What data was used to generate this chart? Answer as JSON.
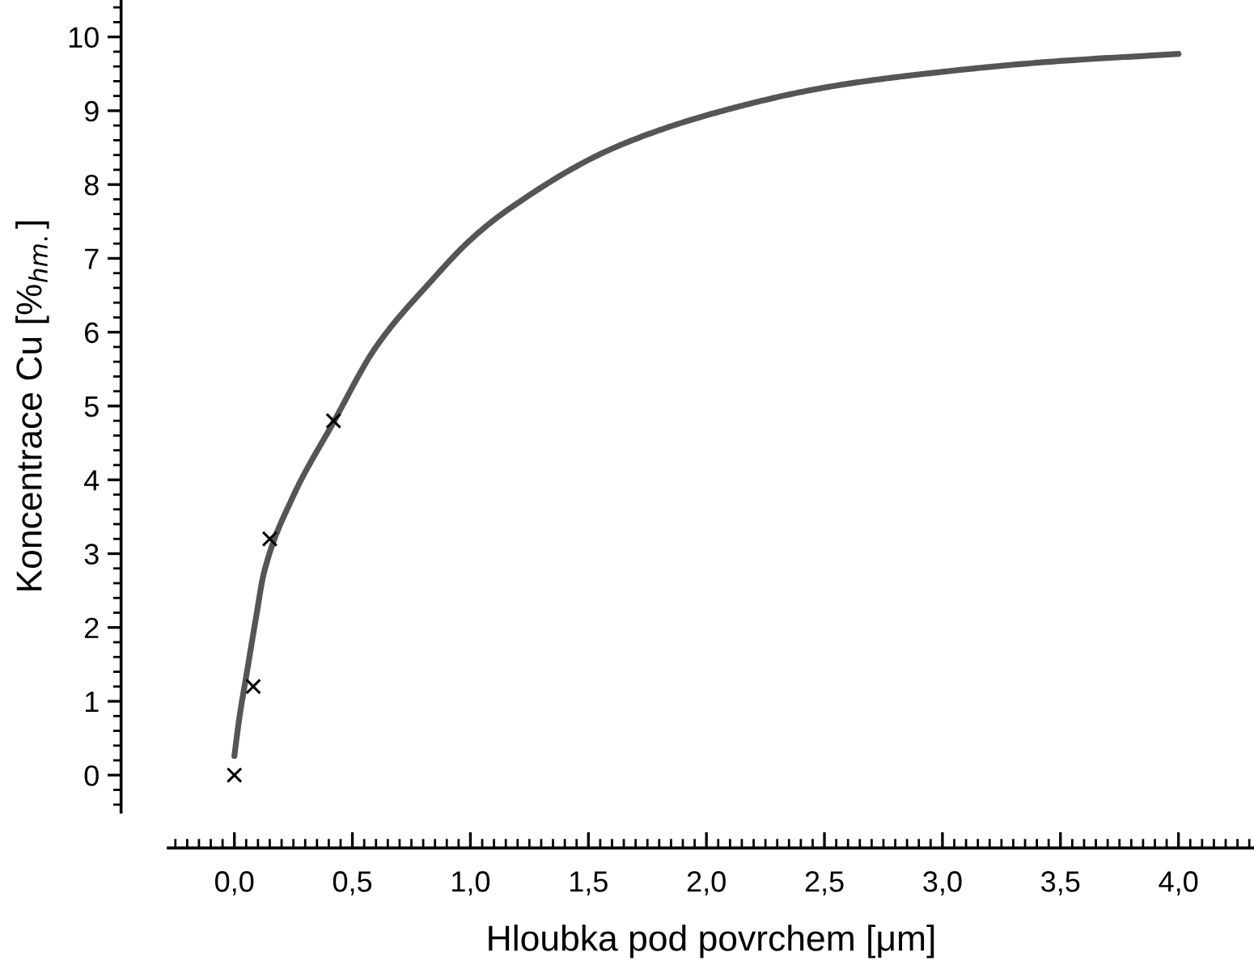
{
  "chart_data": {
    "type": "line",
    "xlabel": "Hloubka pod povrchem [μm]",
    "ylabel": "Koncentrace Cu [%$_{hm.}$]",
    "series": [
      {
        "type": "line",
        "color": "#555555",
        "marker": "none",
        "line_style": "solid",
        "x": [
          0.0,
          0.02,
          0.055,
          0.09,
          0.126,
          0.245,
          0.42,
          0.6,
          0.836,
          1.0,
          1.155,
          1.61,
          2.07,
          2.53,
          2.98,
          3.44,
          4.0
        ],
        "values": [
          0.26,
          0.75,
          1.43,
          2.1,
          2.75,
          3.75,
          4.78,
          5.8,
          6.7,
          7.25,
          7.65,
          8.5,
          9.0,
          9.33,
          9.52,
          9.66,
          9.77
        ]
      },
      {
        "type": "scatter",
        "color": "#000000",
        "marker": "cross",
        "x": [
          0.0,
          0.08,
          0.15,
          0.42
        ],
        "values": [
          0,
          1.2,
          3.2,
          4.8
        ]
      }
    ],
    "xlim": [
      -0.28,
      4.32
    ],
    "ylim": [
      -0.5,
      10.5
    ],
    "xticks": [
      {
        "value": 0,
        "label": "0,0"
      },
      {
        "value": 0.5,
        "label": "0,5"
      },
      {
        "value": 1,
        "label": "1,0"
      },
      {
        "value": 1.5,
        "label": "1,5"
      },
      {
        "value": 2,
        "label": "2,0"
      },
      {
        "value": 2.5,
        "label": "2,5"
      },
      {
        "value": 3,
        "label": "3,0"
      },
      {
        "value": 3.5,
        "label": "3,5"
      },
      {
        "value": 4,
        "label": "4,0"
      }
    ],
    "yticks": [
      0,
      1,
      2,
      3,
      4,
      5,
      6,
      7,
      8,
      9,
      10
    ],
    "grid": false,
    "legend": false
  }
}
